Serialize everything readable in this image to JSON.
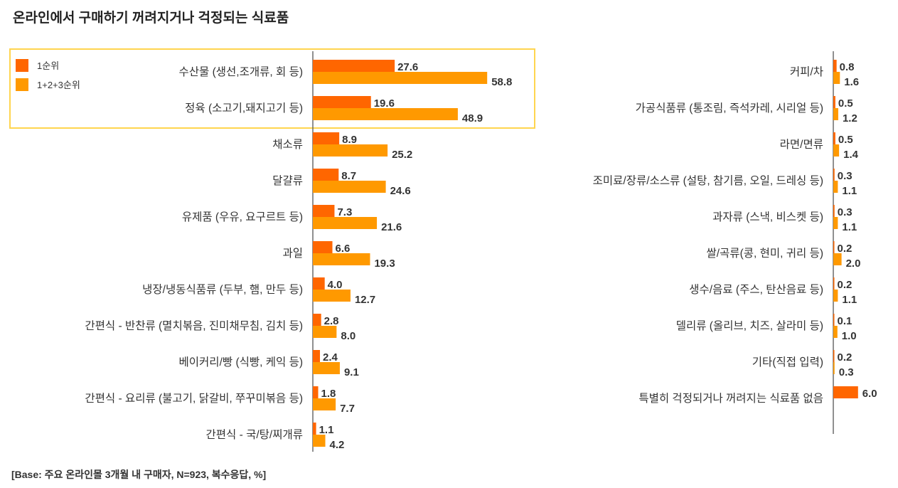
{
  "title": "온라인에서 구매하기 꺼려지거나 걱정되는 식료품",
  "footer": "[Base: 주요 온라인몰 3개월 내 구매자, N=923, 복수응답, %]",
  "colors": {
    "rank1": "#ff6600",
    "rank123": "#ff9900",
    "highlight": "#ffd54f"
  },
  "chart_data": {
    "type": "bar",
    "orientation": "horizontal",
    "title": "온라인에서 구매하기 꺼려지거나 걱정되는 식료품",
    "legend": {
      "placement": "top-left",
      "entries": [
        "1순위",
        "1+2+3순위"
      ]
    },
    "series": [
      {
        "name": "1순위"
      },
      {
        "name": "1+2+3순위"
      }
    ],
    "panels": [
      {
        "categories": [
          "수산물 (생선,조개류, 회 등)",
          "정육 (소고기,돼지고기 등)",
          "채소류",
          "달걀류",
          "유제품 (우유, 요구르트 등)",
          "과일",
          "냉장/냉동식품류 (두부, 햄, 만두 등)",
          "간편식 - 반찬류 (멸치볶음, 진미채무침, 김치 등)",
          "베이커리/빵 (식빵, 케익 등)",
          "간편식 - 요리류 (불고기, 닭갈비, 쭈꾸미볶음 등)",
          "간편식 - 국/탕/찌개류"
        ],
        "rank1": [
          27.6,
          19.6,
          8.9,
          8.7,
          7.3,
          6.6,
          4.0,
          2.8,
          2.4,
          1.8,
          1.1
        ],
        "rank123": [
          58.8,
          48.9,
          25.2,
          24.6,
          21.6,
          19.3,
          12.7,
          8.0,
          9.1,
          7.7,
          4.2
        ],
        "labels1": [
          "27.6",
          "19.6",
          "8.9",
          "8.7",
          "7.3",
          "6.6",
          "4.0",
          "2.8",
          "2.4",
          "1.8",
          "1.1"
        ],
        "labels123": [
          "58.8",
          "48.9",
          "25.2",
          "24.6",
          "21.6",
          "19.3",
          "12.7",
          "8.0",
          "9.1",
          "7.7",
          "4.2"
        ]
      },
      {
        "categories": [
          "커피/차",
          "가공식품류 (통조림, 즉석카레, 시리얼 등)",
          "라면/면류",
          "조미료/장류/소스류 (설탕, 참기름, 오일, 드레싱 등)",
          "과자류 (스낵, 비스켓 등)",
          "쌀/곡류(콩, 현미, 귀리 등)",
          "생수/음료 (주스, 탄산음료 등)",
          "델리류 (올리브, 치즈, 살라미 등)",
          "기타(직접 입력)",
          "특별히 걱정되거나 꺼려지는 식료품 없음"
        ],
        "rank1": [
          0.8,
          0.5,
          0.5,
          0.3,
          0.3,
          0.2,
          0.2,
          0.1,
          0.2,
          6.0
        ],
        "rank123": [
          1.6,
          1.2,
          1.4,
          1.1,
          1.1,
          2.0,
          1.1,
          1.0,
          0.3,
          null
        ],
        "labels1": [
          "0.8",
          "0.5",
          "0.5",
          "0.3",
          "0.3",
          "0.2",
          "0.2",
          "0.1",
          "0.2",
          "6.0"
        ],
        "labels123": [
          "1.6",
          "1.2",
          "1.4",
          "1.1",
          "1.1",
          "2.0",
          "1.1",
          "1.0",
          "0.3",
          null
        ]
      }
    ]
  }
}
